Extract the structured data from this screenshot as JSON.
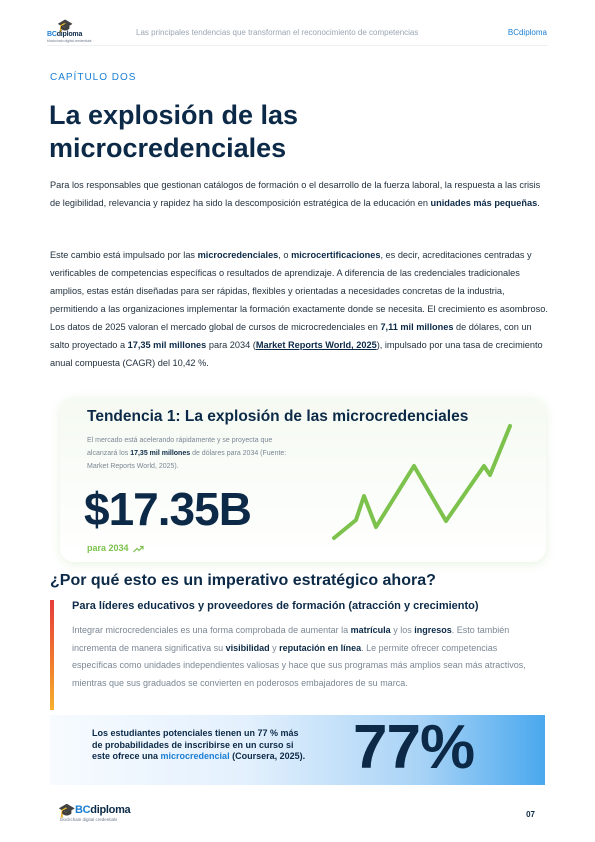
{
  "header": {
    "logo_name_bc": "BC",
    "logo_name_rest": "diploma",
    "logo_tagline": "blockchain digital credentials",
    "title": "Las principales tendencias que transforman el reconocimiento de competencias",
    "brand": "BCdiploma"
  },
  "chapter": "CAPÍTULO DOS",
  "title": "La explosión de las microcredenciales",
  "intro": {
    "text": "Para los responsables que gestionan catálogos de formación o el desarrollo de la fuerza laboral, la respuesta a las crisis de legibilidad, relevancia y rapidez ha sido la descomposición estratégica de la educación en ",
    "bold": "unidades más pequeñas",
    "end": "."
  },
  "body": {
    "t1": "Este cambio está impulsado por las ",
    "b1": "microcredenciales",
    "t2": ", o ",
    "b2": "microcertificaciones",
    "t3": ", es decir, acreditaciones centradas y verificables de competencias específicas o resultados de aprendizaje. A diferencia de las credenciales tradicionales amplios, estas están diseñadas para ser rápidas, flexibles y orientadas a necesidades concretas de la industria, permitiendo a las organizaciones implementar la formación exactamente donde se necesita. El crecimiento es asombroso. Los datos de 2025 valoran el mercado global de cursos de microcredenciales en ",
    "b3": "7,11 mil millones",
    "t4": " de dólares, con un salto proyectado a ",
    "b4": "17,35 mil millones",
    "t5": " para 2034 (",
    "link": "Market Reports World, 2025",
    "t6": "), impulsado por una tasa de crecimiento anual compuesta (CAGR) del 10,42 %."
  },
  "card": {
    "title": "Tendencia 1: La explosión de las microcredenciales",
    "desc_start": "El mercado está acelerando rápidamente y se proyecta que alcanzará los ",
    "desc_bold": "17,35 mil millones",
    "desc_end": " de dólares para 2034 (Fuente: Market Reports World, 2025).",
    "big_value": "$17.35B",
    "sub": "para 2034",
    "trend_icon": "trending-up-icon",
    "line_color": "#7cc24c"
  },
  "section": {
    "heading": "¿Por qué esto es un imperativo estratégico ahora?",
    "subheading": "Para líderes educativos y proveedores de formación (atracción y crecimiento)",
    "p_t1": "Integrar microcredenciales es una forma comprobada de aumentar la ",
    "p_b1": "matrícula",
    "p_t2": " y los ",
    "p_b2": "ingresos",
    "p_t3": ". Esto también incrementa de manera significativa su ",
    "p_b3": "visibilidad",
    "p_t4": " y ",
    "p_b4": "reputación en línea",
    "p_t5": ". Le permite ofrecer competencias específicas como unidades independientes valiosas y hace que sus programas más amplios sean más atractivos, mientras que sus graduados se convierten en poderosos embajadores de su marca."
  },
  "stat": {
    "text1": "Los estudiantes potenciales tienen un 77 % más de probabilidades de inscribirse en un curso si este ofrece una ",
    "highlight": "microcredencial",
    "text2": " (Coursera, 2025).",
    "big": "77%"
  },
  "footer": {
    "logo_name_bc": "BC",
    "logo_name_rest": "diploma",
    "logo_tagline": "blockchain digital credentials",
    "page": "07"
  },
  "colors": {
    "navy": "#0c2a47",
    "accent_blue": "#1b7ed3",
    "accent_green": "#7cc24c"
  }
}
